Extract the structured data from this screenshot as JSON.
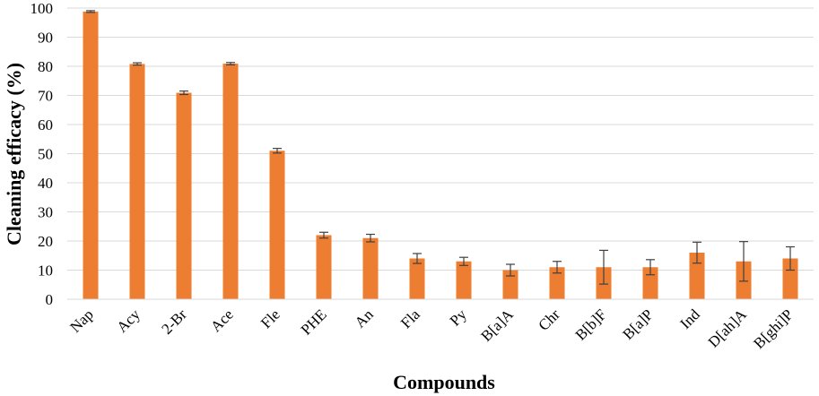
{
  "chart_data": {
    "type": "bar",
    "title": "",
    "xlabel": "Compounds",
    "ylabel": "Cleaning efficacy (%)",
    "ylim": [
      0,
      100
    ],
    "yticks": [
      0,
      10,
      20,
      30,
      40,
      50,
      60,
      70,
      80,
      90,
      100
    ],
    "grid": true,
    "bar_color": "#ED7D31",
    "categories": [
      "Nap",
      "Acy",
      "2-Br",
      "Ace",
      "Fle",
      "PHE",
      "An",
      "Fla",
      "Py",
      "B[a]A",
      "Chr",
      "B[b]F",
      "B[a]P",
      "Ind",
      "D[ah]A",
      "B[ghi]P"
    ],
    "values": [
      98.8,
      80.8,
      70.9,
      80.9,
      51.0,
      22.0,
      21.0,
      14.0,
      13.0,
      10.0,
      11.0,
      11.0,
      11.0,
      16.0,
      13.0,
      14.0
    ],
    "errors": [
      0.3,
      0.4,
      0.6,
      0.4,
      0.8,
      1.0,
      1.3,
      1.7,
      1.4,
      2.0,
      2.0,
      5.8,
      2.6,
      3.6,
      6.8,
      4.0
    ]
  }
}
